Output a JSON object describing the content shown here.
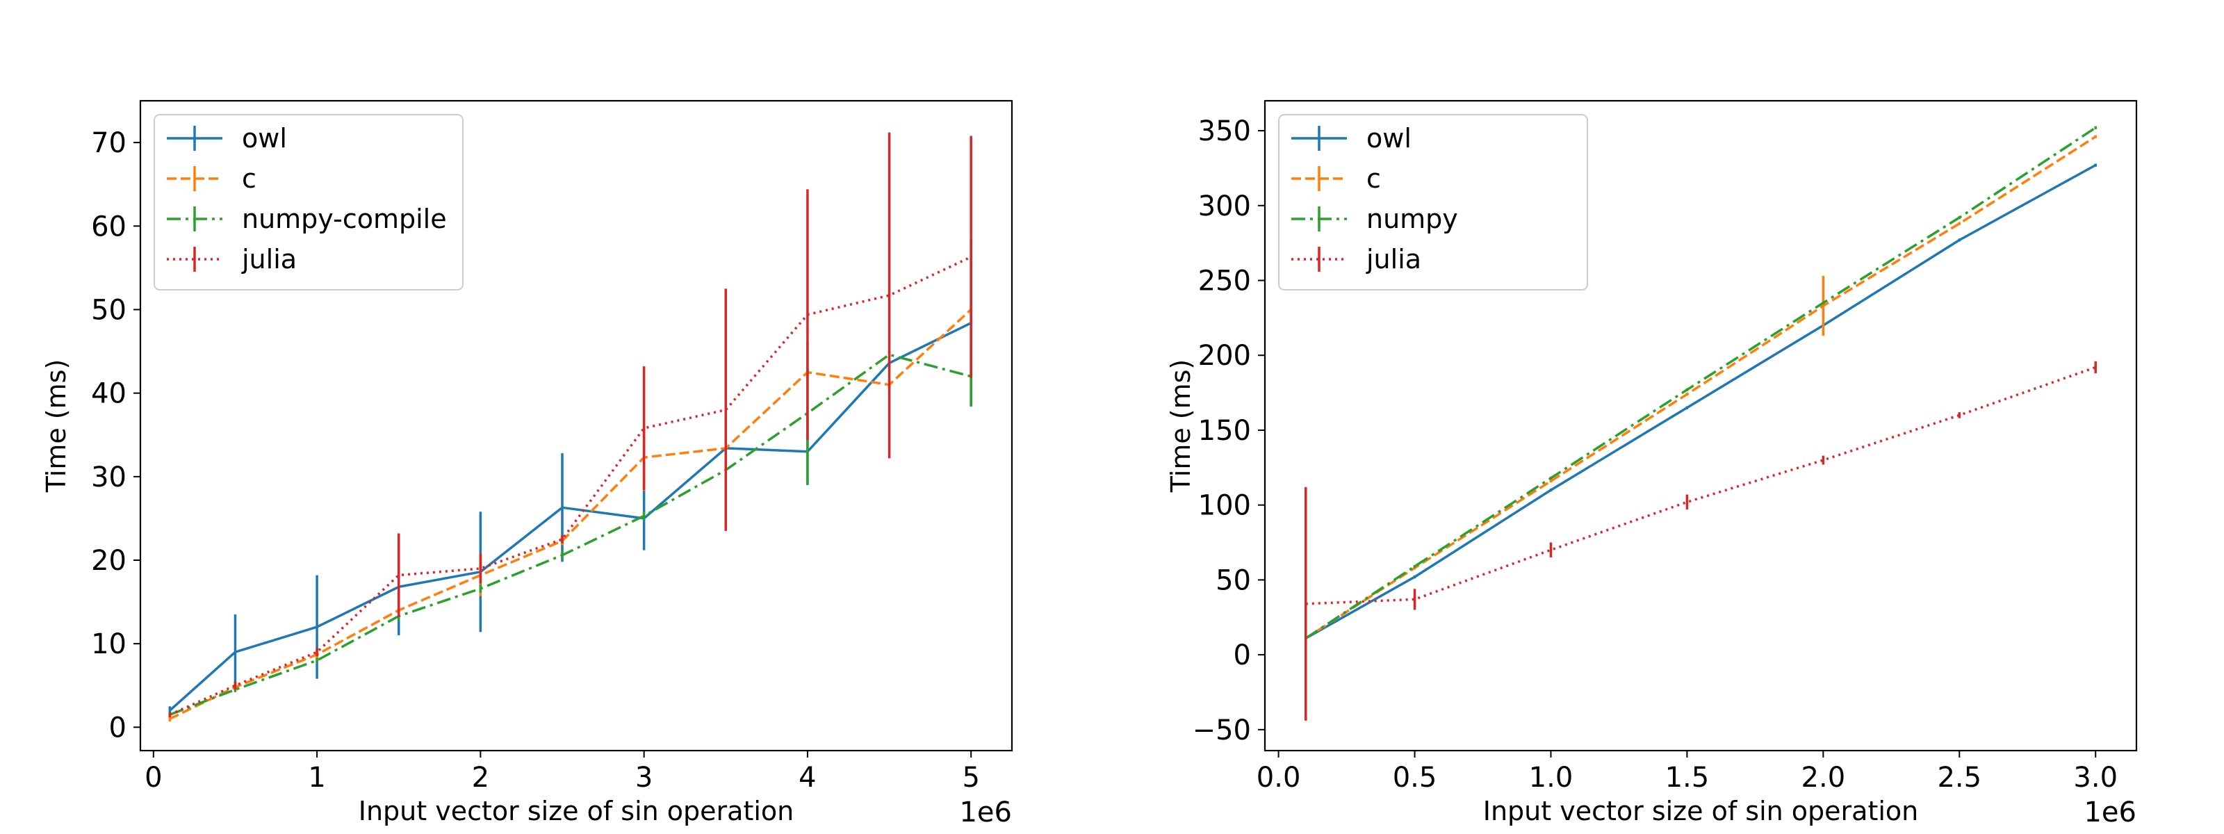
{
  "colors": {
    "owl": "#1f77b4",
    "c": "#ff7f0e",
    "numpy": "#2ca02c",
    "julia": "#d62728",
    "axes": "#000000",
    "legend_border": "#cccccc"
  },
  "chart_data": [
    {
      "type": "line",
      "title": "",
      "xlabel": "Input vector size of sin operation",
      "ylabel": "Time (ms)",
      "x_offset_label": "1e6",
      "xlim": [
        -0.08,
        5.25
      ],
      "ylim": [
        -2.8,
        75
      ],
      "xticks": [
        0,
        1,
        2,
        3,
        4,
        5
      ],
      "yticks": [
        0,
        10,
        20,
        30,
        40,
        50,
        60,
        70
      ],
      "x_tick_labels": [
        "0",
        "1",
        "2",
        "3",
        "4",
        "5"
      ],
      "y_tick_labels": [
        "0",
        "10",
        "20",
        "30",
        "40",
        "50",
        "60",
        "70"
      ],
      "grid": false,
      "legend_position": "top-left",
      "x": [
        0.1,
        0.5,
        1.0,
        1.5,
        2.0,
        2.5,
        3.0,
        3.5,
        4.0,
        4.5,
        5.0
      ],
      "series": [
        {
          "name": "owl",
          "style": "solid",
          "color_key": "owl",
          "values": [
            2,
            9,
            12,
            16.8,
            18.6,
            26.3,
            25,
            33.4,
            33,
            43.6,
            48.4
          ],
          "errors": [
            0.5,
            4.5,
            6.2,
            5.8,
            7.2,
            6.5,
            3.8,
            0.5,
            4,
            0.5,
            10
          ]
        },
        {
          "name": "c",
          "style": "dashed",
          "color_key": "c",
          "values": [
            1,
            4.8,
            8.7,
            14,
            18.2,
            22.3,
            32.3,
            33.4,
            42.5,
            41,
            50
          ],
          "errors": [
            0.3,
            0.5,
            0.5,
            0.5,
            2.5,
            0.5,
            4,
            0.5,
            0.5,
            0.5,
            0.5
          ]
        },
        {
          "name": "numpy-compile",
          "style": "dashdot",
          "color_key": "numpy",
          "values": [
            1.5,
            4.5,
            8,
            13.3,
            16.6,
            20.6,
            25.3,
            30.8,
            37.6,
            44.6,
            42
          ],
          "errors": [
            0.3,
            0.3,
            0.3,
            0.5,
            0.5,
            0.5,
            0.5,
            0.5,
            8.5,
            0.5,
            3.5
          ]
        },
        {
          "name": "julia",
          "style": "dotted",
          "color_key": "julia",
          "values": [
            1.5,
            5,
            9,
            18.2,
            19,
            22.5,
            35.8,
            38,
            49.4,
            51.7,
            56.3
          ],
          "errors": [
            0.3,
            0.5,
            0.5,
            5,
            1.8,
            0.5,
            7.4,
            14.5,
            15,
            19.5,
            14.5
          ]
        }
      ]
    },
    {
      "type": "line",
      "title": "",
      "xlabel": "Input vector size of sin operation",
      "ylabel": "Time (ms)",
      "x_offset_label": "1e6",
      "xlim": [
        -0.05,
        3.15
      ],
      "ylim": [
        -64,
        370
      ],
      "xticks": [
        0,
        0.5,
        1.0,
        1.5,
        2.0,
        2.5,
        3.0
      ],
      "yticks": [
        -50,
        0,
        50,
        100,
        150,
        200,
        250,
        300,
        350
      ],
      "x_tick_labels": [
        "0.0",
        "0.5",
        "1.0",
        "1.5",
        "2.0",
        "2.5",
        "3.0"
      ],
      "y_tick_labels": [
        "−50",
        "0",
        "50",
        "100",
        "150",
        "200",
        "250",
        "300",
        "350"
      ],
      "grid": false,
      "legend_position": "top-left",
      "x": [
        0.1,
        0.5,
        1.0,
        1.5,
        2.0,
        2.5,
        3.0
      ],
      "series": [
        {
          "name": "owl",
          "style": "solid",
          "color_key": "owl",
          "values": [
            11,
            52,
            110,
            165,
            220,
            277,
            327
          ],
          "errors": [
            1,
            1,
            1,
            1,
            1,
            1,
            1
          ]
        },
        {
          "name": "c",
          "style": "dashed",
          "color_key": "c",
          "values": [
            11,
            58,
            116,
            174,
            233,
            288,
            346
          ],
          "errors": [
            1,
            1,
            1,
            1,
            20,
            1,
            1
          ]
        },
        {
          "name": "numpy",
          "style": "dashdot",
          "color_key": "numpy",
          "values": [
            11,
            59,
            118,
            177,
            235,
            292,
            352
          ],
          "errors": [
            1,
            1,
            1,
            1,
            1,
            1,
            1
          ]
        },
        {
          "name": "julia",
          "style": "dotted",
          "color_key": "julia",
          "values": [
            34,
            37,
            70,
            102,
            130,
            160,
            192
          ],
          "errors": [
            78,
            7,
            5,
            5,
            3,
            2,
            4
          ]
        }
      ]
    }
  ]
}
